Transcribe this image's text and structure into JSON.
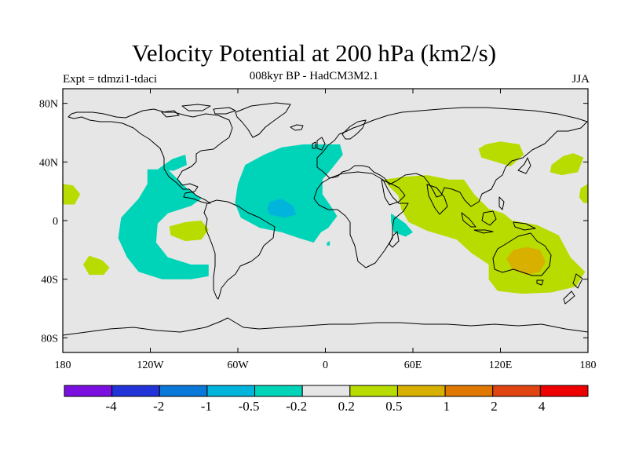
{
  "title": "Velocity Potential at 200 hPa (km2/s)",
  "subtitle": "008kyr BP - HadCM3M2.1",
  "experiment": "Expt = tdmzi1-tdaci",
  "season": "JJA",
  "map": {
    "projection": "cylindrical-equidistant",
    "lon_range": [
      -180,
      180
    ],
    "lat_range": [
      -90,
      90
    ],
    "background_color": "#e6e6e6",
    "lat_ticks": [
      {
        "value": 80,
        "label": "80N"
      },
      {
        "value": 40,
        "label": "40N"
      },
      {
        "value": 0,
        "label": "0"
      },
      {
        "value": -40,
        "label": "40S"
      },
      {
        "value": -80,
        "label": "80S"
      }
    ],
    "lon_ticks": [
      {
        "value": -180,
        "label": "180"
      },
      {
        "value": -120,
        "label": "120W"
      },
      {
        "value": -60,
        "label": "60W"
      },
      {
        "value": 0,
        "label": "0"
      },
      {
        "value": 60,
        "label": "60E"
      },
      {
        "value": 120,
        "label": "120E"
      },
      {
        "value": 180,
        "label": "180"
      }
    ]
  },
  "colorbar": {
    "colors": [
      "#7a0fe0",
      "#2233d8",
      "#0a78d8",
      "#00b4dc",
      "#00d4b8",
      "#e6e6e6",
      "#b8dc00",
      "#d8b000",
      "#e07800",
      "#e04410",
      "#ee0000"
    ],
    "labels": [
      "-4",
      "-2",
      "-1",
      "-0.5",
      "-0.2",
      "0.2",
      "0.5",
      "1",
      "2",
      "4"
    ]
  },
  "fields": [
    {
      "level": "-0.5 to -0.2",
      "color": "#00d4b8",
      "regions": [
        {
          "name": "atlantic-negative",
          "points": [
            [
              -60,
              25
            ],
            [
              -55,
              38
            ],
            [
              -42,
              45
            ],
            [
              -30,
              50
            ],
            [
              -15,
              52
            ],
            [
              10,
              52
            ],
            [
              12,
              45
            ],
            [
              4,
              35
            ],
            [
              -2,
              28
            ],
            [
              -2,
              18
            ],
            [
              5,
              8
            ],
            [
              8,
              3
            ],
            [
              2,
              -5
            ],
            [
              -3,
              -8
            ],
            [
              -8,
              -15
            ],
            [
              -18,
              -12
            ],
            [
              -30,
              -8
            ],
            [
              -45,
              -5
            ],
            [
              -58,
              2
            ],
            [
              -62,
              12
            ]
          ]
        },
        {
          "name": "pacific-negative",
          "points": [
            [
              -122,
              35
            ],
            [
              -108,
              35
            ],
            [
              -95,
              22
            ],
            [
              -85,
              15
            ],
            [
              -92,
              10
            ],
            [
              -108,
              5
            ],
            [
              -115,
              -2
            ],
            [
              -116,
              -15
            ],
            [
              -108,
              -25
            ],
            [
              -92,
              -30
            ],
            [
              -80,
              -30
            ],
            [
              -80,
              -38
            ],
            [
              -92,
              -40
            ],
            [
              -112,
              -40
            ],
            [
              -128,
              -35
            ],
            [
              -136,
              -25
            ],
            [
              -142,
              -12
            ],
            [
              -140,
              2
            ],
            [
              -128,
              15
            ],
            [
              -122,
              25
            ]
          ]
        },
        {
          "name": "west-atlantic-tongue",
          "points": [
            [
              -115,
              35
            ],
            [
              -105,
              42
            ],
            [
              -96,
              45
            ],
            [
              -95,
              38
            ],
            [
              -104,
              34
            ]
          ]
        },
        {
          "name": "east-africa-negative",
          "points": [
            [
              45,
              5
            ],
            [
              55,
              -2
            ],
            [
              60,
              -8
            ],
            [
              55,
              -11
            ],
            [
              47,
              -8
            ],
            [
              45,
              -1
            ]
          ]
        },
        {
          "name": "south-atlantic-dot",
          "points": [
            [
              1,
              -15
            ],
            [
              3,
              -14
            ],
            [
              3,
              -17
            ],
            [
              1,
              -17
            ]
          ]
        }
      ]
    },
    {
      "level": "-1 to -0.5",
      "color": "#00b4dc",
      "regions": [
        {
          "name": "atlantic-core",
          "points": [
            [
              -38,
              13
            ],
            [
              -30,
              15
            ],
            [
              -22,
              10
            ],
            [
              -20,
              4
            ],
            [
              -28,
              2
            ],
            [
              -38,
              4
            ],
            [
              -40,
              8
            ]
          ]
        }
      ]
    },
    {
      "level": "0.2 to 0.5",
      "color": "#b8dc00",
      "regions": [
        {
          "name": "asia-australia-positive",
          "points": [
            [
              40,
              28
            ],
            [
              55,
              30
            ],
            [
              70,
              31
            ],
            [
              85,
              28
            ],
            [
              95,
              28
            ],
            [
              102,
              18
            ],
            [
              112,
              8
            ],
            [
              122,
              5
            ],
            [
              128,
              0
            ],
            [
              145,
              -3
            ],
            [
              160,
              -10
            ],
            [
              168,
              -25
            ],
            [
              178,
              -35
            ],
            [
              172,
              -45
            ],
            [
              155,
              -49
            ],
            [
              135,
              -50
            ],
            [
              118,
              -48
            ],
            [
              112,
              -40
            ],
            [
              112,
              -30
            ],
            [
              100,
              -22
            ],
            [
              90,
              -13
            ],
            [
              70,
              -7
            ],
            [
              57,
              -1
            ],
            [
              52,
              8
            ],
            [
              50,
              17
            ],
            [
              44,
              23
            ]
          ]
        },
        {
          "name": "asia-north-positive",
          "points": [
            [
              110,
              52
            ],
            [
              120,
              54
            ],
            [
              133,
              52
            ],
            [
              136,
              45
            ],
            [
              127,
              37
            ],
            [
              117,
              40
            ],
            [
              107,
              43
            ],
            [
              105,
              49
            ]
          ]
        },
        {
          "name": "pacific-north-positive",
          "points": [
            [
              155,
              38
            ],
            [
              163,
              44
            ],
            [
              170,
              46
            ],
            [
              177,
              43
            ],
            [
              173,
              33
            ],
            [
              162,
              31
            ],
            [
              154,
              33
            ]
          ]
        },
        {
          "name": "east-pacific-positive",
          "points": [
            [
              -107,
              -4
            ],
            [
              -96,
              -1
            ],
            [
              -85,
              0
            ],
            [
              -80,
              -6
            ],
            [
              -85,
              -13
            ],
            [
              -96,
              -14
            ],
            [
              -106,
              -10
            ]
          ]
        },
        {
          "name": "south-pacific-positive",
          "points": [
            [
              -162,
              -24
            ],
            [
              -153,
              -27
            ],
            [
              -148,
              -32
            ],
            [
              -152,
              -37
            ],
            [
              -162,
              -37
            ],
            [
              -166,
              -30
            ]
          ]
        },
        {
          "name": "dateline-west-positive",
          "points": [
            [
              -180,
              25
            ],
            [
              -173,
              24
            ],
            [
              -168,
              18
            ],
            [
              -172,
              11
            ],
            [
              -180,
              11
            ]
          ]
        },
        {
          "name": "dateline-east-positive",
          "points": [
            [
              180,
              25
            ],
            [
              175,
              22
            ],
            [
              174,
              16
            ],
            [
              177,
              12
            ],
            [
              180,
              12
            ]
          ]
        }
      ]
    },
    {
      "level": "0.5 to 1",
      "color": "#d8b000",
      "regions": [
        {
          "name": "australia-core",
          "points": [
            [
              129,
              -20
            ],
            [
              138,
              -18
            ],
            [
              147,
              -20
            ],
            [
              151,
              -28
            ],
            [
              147,
              -35
            ],
            [
              138,
              -37
            ],
            [
              128,
              -33
            ],
            [
              124,
              -26
            ]
          ]
        }
      ]
    }
  ]
}
